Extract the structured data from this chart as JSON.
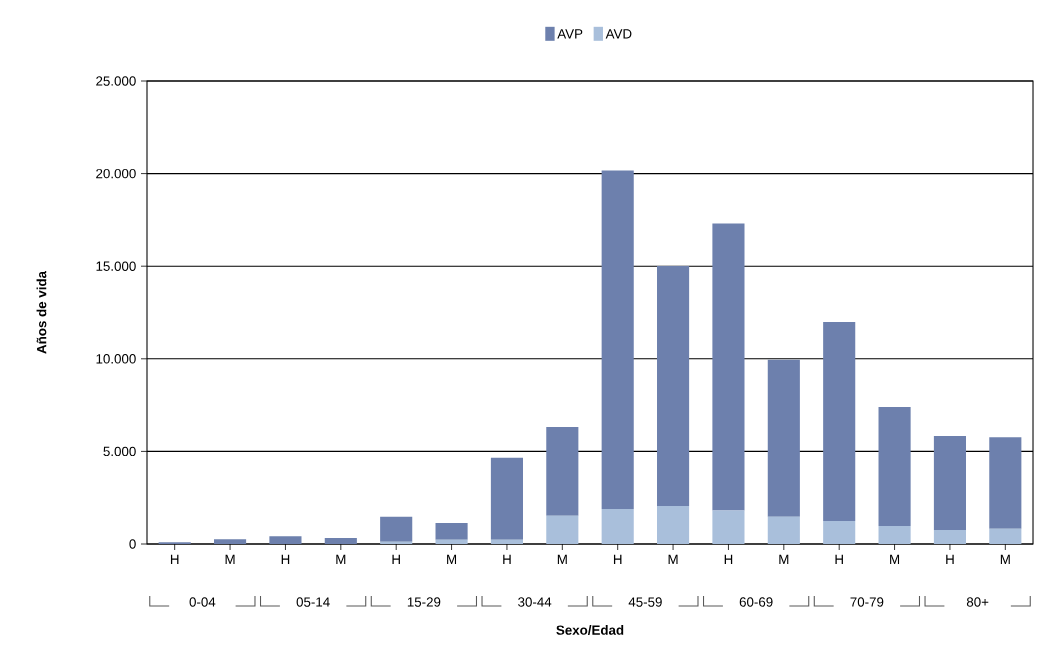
{
  "chart_data": {
    "type": "bar",
    "stacked": true,
    "xlabel": "Sexo/Edad",
    "ylabel": "Años de vida",
    "categories": [
      "H",
      "M",
      "H",
      "M",
      "H",
      "M",
      "H",
      "M",
      "H",
      "M",
      "H",
      "M",
      "H",
      "M",
      "H",
      "M"
    ],
    "series": [
      {
        "name": "AVD",
        "color": "#a9bfdb",
        "values": [
          null,
          null,
          null,
          null,
          120,
          230,
          230,
          1530,
          1890,
          2050,
          1810,
          1470,
          1240,
          970,
          760,
          830
        ]
      },
      {
        "name": "AVP",
        "color": "#6d80ad",
        "values": [
          100,
          250,
          420,
          320,
          1350,
          900,
          4430,
          4790,
          18280,
          12960,
          15500,
          8480,
          10750,
          6430,
          5070,
          4930
        ]
      }
    ],
    "annotations": [
      "0-04",
      "05-14",
      "15-29",
      "30-44",
      "45-59",
      "60-69",
      "70-79",
      "80+"
    ],
    "ylim": [
      0,
      25000
    ],
    "yticks": [
      0,
      {
        "value": 5000,
        "label": "5.000"
      },
      {
        "value": 10000,
        "label": "10.000"
      },
      {
        "value": 15000,
        "label": "15.000"
      },
      {
        "value": 20000,
        "label": "20.000"
      },
      {
        "value": 25000,
        "label": "25.000"
      }
    ],
    "grid": "y",
    "legend": "top"
  }
}
